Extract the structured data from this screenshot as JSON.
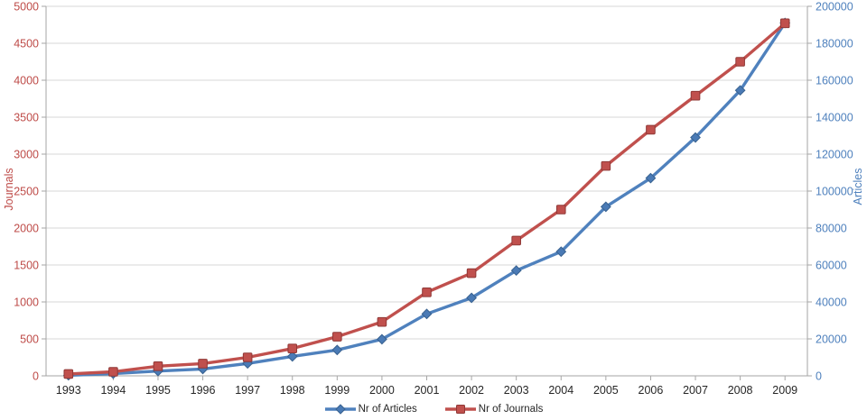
{
  "chart_data": {
    "type": "line",
    "title": "",
    "x": [
      "1993",
      "1994",
      "1995",
      "1996",
      "1997",
      "1998",
      "1999",
      "2000",
      "2001",
      "2002",
      "2003",
      "2004",
      "2005",
      "2006",
      "2007",
      "2008",
      "2009"
    ],
    "series": [
      {
        "name": "Nr of Articles",
        "axis": "right",
        "marker": "diamond",
        "color": "#4f81bd",
        "marker_fill": "#4a7ab5",
        "marker_border": "#38618f",
        "values": [
          300,
          1200,
          2600,
          3700,
          6700,
          10500,
          14000,
          19800,
          33500,
          42200,
          57000,
          67200,
          91500,
          107000,
          129000,
          154500,
          191000
        ]
      },
      {
        "name": "Nr of Journals",
        "axis": "left",
        "marker": "square",
        "color": "#c0504d",
        "marker_fill": "#c0504d",
        "marker_border": "#8f3836",
        "values": [
          25,
          55,
          130,
          165,
          250,
          370,
          530,
          730,
          1130,
          1390,
          1830,
          2250,
          2840,
          3330,
          3790,
          4250,
          4770
        ]
      }
    ],
    "left_axis": {
      "label": "Journals",
      "min": 0,
      "max": 5000,
      "step": 500,
      "color": "#be4b48"
    },
    "right_axis": {
      "label": "Articles",
      "min": 0,
      "max": 200000,
      "step": 20000,
      "color": "#4f81bd"
    },
    "x_axis": {
      "label_color": "#262626"
    },
    "grid": true,
    "gridline_color": "#d7d7d7",
    "axis_line_color": "#a6a6a6",
    "background": "#ffffff",
    "legend_position": "bottom"
  },
  "legend": {
    "items": [
      {
        "label": "Nr of Articles"
      },
      {
        "label": "Nr of Journals"
      }
    ]
  }
}
